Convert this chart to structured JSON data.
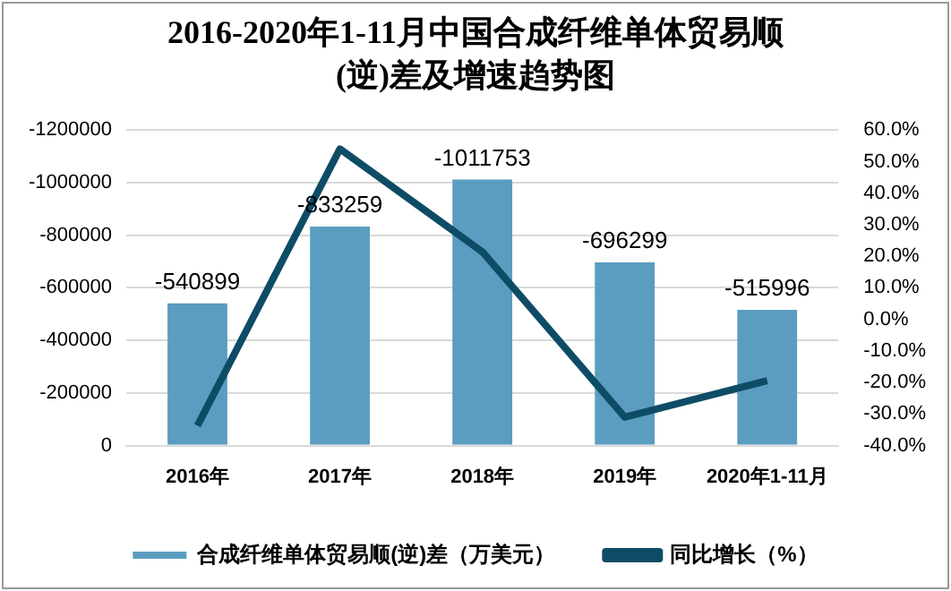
{
  "chart_data": {
    "type": "bar",
    "title": "2016-2020年1-11月中国合成纤维单体贸易顺(逆)差及增速趋势图",
    "categories": [
      "2016年",
      "2017年",
      "2018年",
      "2019年",
      "2020年1-11月"
    ],
    "series": [
      {
        "name": "合成纤维单体贸易顺(逆)差（万美元）",
        "color": "#5b9dc0",
        "values": [
          -540899,
          -833259,
          -1011753,
          -696299,
          -515996
        ],
        "value_labels": [
          "-540899",
          "-833259",
          "-1011753",
          "-696299",
          "-515996"
        ]
      },
      {
        "name": "同比增长（%）",
        "type": "line",
        "axis": "y2",
        "color": "#0e4c66",
        "values": [
          -33.7,
          54.0,
          21.4,
          -31.0,
          -19.4
        ]
      }
    ],
    "ylim": [
      0,
      -1200000
    ],
    "yticks": [
      0,
      -200000,
      -400000,
      -600000,
      -800000,
      -1000000,
      -1200000
    ],
    "y2lim": [
      -40,
      60
    ],
    "y2ticks": [
      {
        "value": -40,
        "label": "-40.0%"
      },
      {
        "value": -30,
        "label": "-30.0%"
      },
      {
        "value": -20,
        "label": "-20.0%"
      },
      {
        "value": -10,
        "label": "-10.0%"
      },
      {
        "value": 0,
        "label": "0.0%"
      },
      {
        "value": 10,
        "label": "10.0%"
      },
      {
        "value": 20,
        "label": "20.0%"
      },
      {
        "value": 30,
        "label": "30.0%"
      },
      {
        "value": 40,
        "label": "40.0%"
      },
      {
        "value": 50,
        "label": "50.0%"
      },
      {
        "value": 60,
        "label": "60.0%"
      }
    ],
    "grid": "y",
    "legend": "bottom",
    "marker": "none",
    "line_style": "solid"
  }
}
